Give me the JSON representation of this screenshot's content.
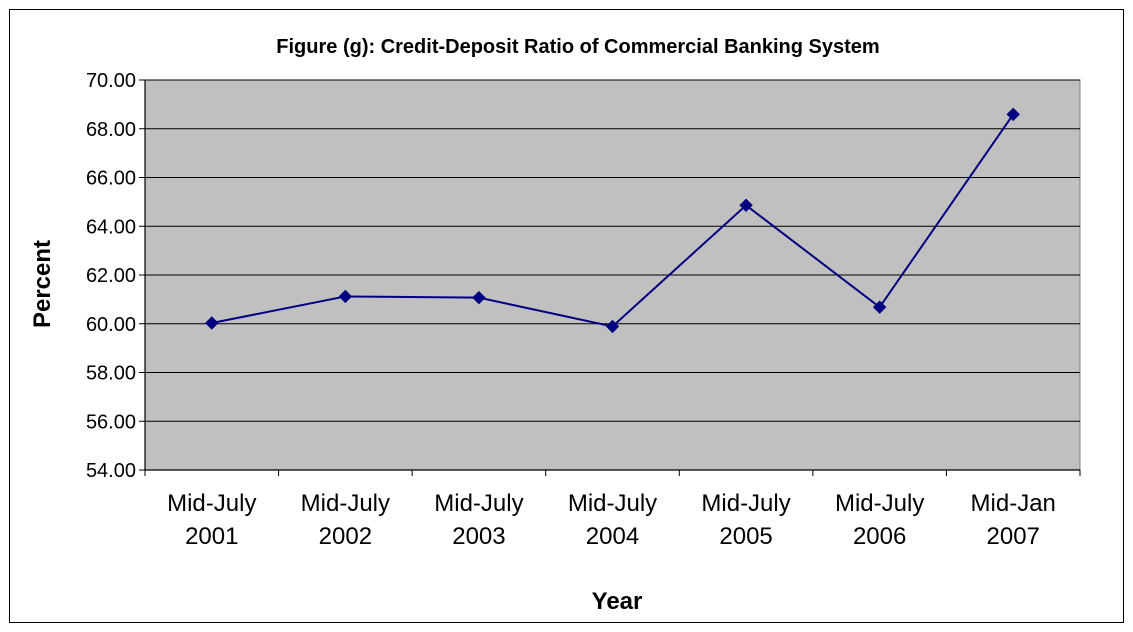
{
  "chart_data": {
    "type": "line",
    "title": "Figure (g): Credit-Deposit Ratio of Commercial Banking System",
    "xlabel": "Year",
    "ylabel": "Percent",
    "categories": [
      [
        "Mid-July",
        "2001"
      ],
      [
        "Mid-July",
        "2002"
      ],
      [
        "Mid-July",
        "2003"
      ],
      [
        "Mid-July",
        "2004"
      ],
      [
        "Mid-July",
        "2005"
      ],
      [
        "Mid-July",
        "2006"
      ],
      [
        "Mid-Jan",
        "2007"
      ]
    ],
    "series": [
      {
        "values": [
          60.03,
          61.12,
          61.07,
          59.89,
          64.86,
          60.68,
          68.59
        ],
        "color": "#000080",
        "marker": "diamond"
      }
    ],
    "ylim": [
      54,
      70
    ],
    "ytick_step": 2,
    "ytick_labels": [
      "54.00",
      "56.00",
      "58.00",
      "60.00",
      "62.00",
      "64.00",
      "66.00",
      "68.00",
      "70.00"
    ],
    "grid": true,
    "plot_background": "#c0c0c0",
    "legend": "none"
  }
}
